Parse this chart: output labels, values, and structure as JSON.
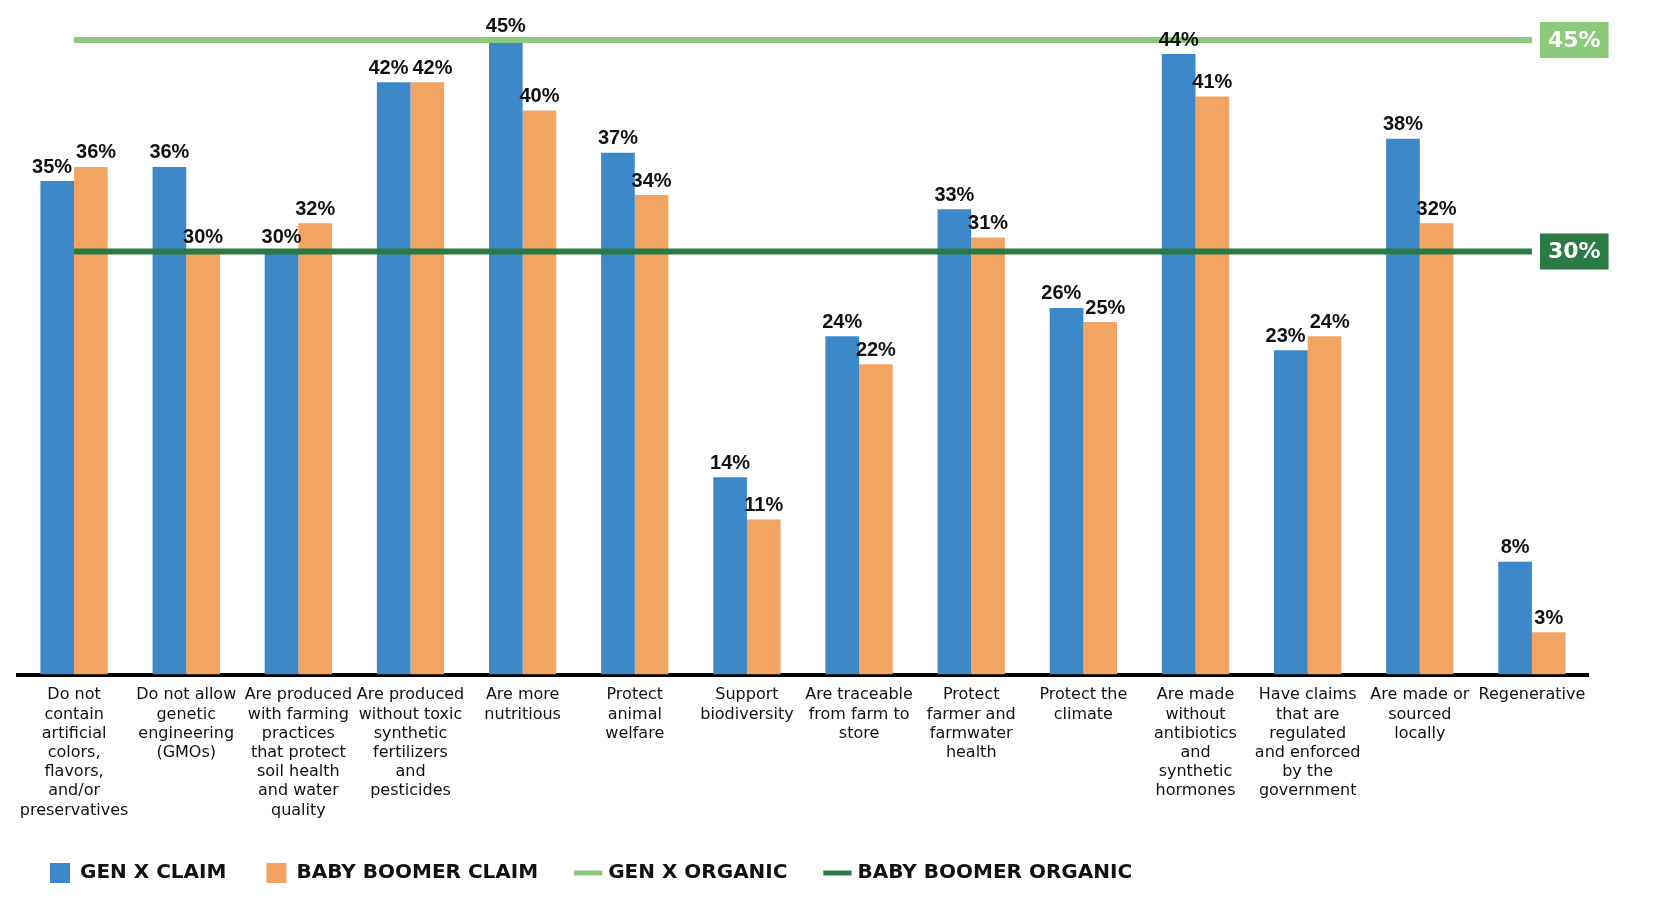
{
  "chart_data": {
    "type": "bar",
    "categories": [
      "Do not contain artificial colors, flavors, and/or preservatives",
      "Do not allow genetic engineering (GMOs)",
      "Are produced with farming practices that protect soil health and water quality",
      "Are produced without toxic synthetic fertilizers and pesticides",
      "Are more nutritious",
      "Protect animal welfare",
      "Support biodiversity",
      "Are traceable from farm to store",
      "Protect farmer and farmwater health",
      "Protect the climate",
      "Are made without antibiotics and synthetic hormones",
      "Have claims that are regulated and enforced by the government",
      "Are made or sourced locally",
      "Regenerative"
    ],
    "series": [
      {
        "name": "GEN X CLAIM",
        "color": "#3d88c9",
        "values": [
          35,
          36,
          30,
          42,
          45,
          37,
          14,
          24,
          33,
          26,
          44,
          23,
          38,
          8
        ],
        "value_labels": [
          "35%",
          "36%",
          "30%",
          "42%",
          "45%",
          "37%",
          "14%",
          "24%",
          "33%",
          "26%",
          "44%",
          "23%",
          "38%",
          "8%"
        ]
      },
      {
        "name": "BABY BOOMER CLAIM",
        "color": "#f2a463",
        "values": [
          36,
          30,
          32,
          42,
          40,
          34,
          11,
          22,
          31,
          25,
          41,
          24,
          32,
          3
        ],
        "value_labels": [
          "36%",
          "30%",
          "32%",
          "42%",
          "40%",
          "34%",
          "11%",
          "22%",
          "31%",
          "25%",
          "41%",
          "24%",
          "32%",
          "3%"
        ]
      },
      {
        "name": "GEN X ORGANIC",
        "type": "line",
        "color": "#8cc97a",
        "values": [
          45,
          45,
          45,
          45,
          45,
          45,
          45,
          45,
          45,
          45,
          45,
          45,
          45,
          45
        ],
        "value_labels": [
          null,
          null,
          null,
          null,
          null,
          null,
          null,
          null,
          null,
          null,
          null,
          null,
          null,
          "45%"
        ]
      },
      {
        "name": "BABY BOOMER ORGANIC",
        "type": "line",
        "color": "#2b7a45",
        "values": [
          30,
          30,
          30,
          30,
          30,
          30,
          30,
          30,
          30,
          30,
          30,
          30,
          30,
          30
        ],
        "value_labels": [
          null,
          null,
          null,
          null,
          null,
          null,
          null,
          null,
          null,
          null,
          null,
          null,
          null,
          "30%"
        ]
      }
    ],
    "legend": "bottom left"
  }
}
